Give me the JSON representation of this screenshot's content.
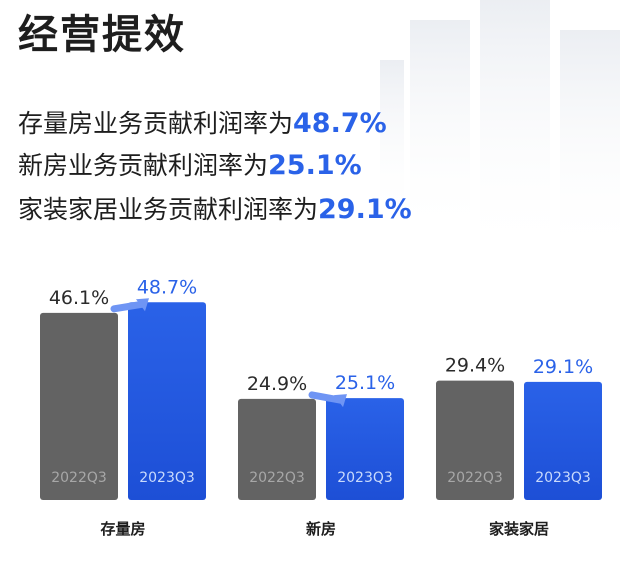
{
  "title": "经营提效",
  "metrics": [
    {
      "prefix": "存量房业务贡献利润率为",
      "value": "48.7%"
    },
    {
      "prefix": "新房业务贡献利润率为",
      "value": "25.1%"
    },
    {
      "prefix": "家装家居业务贡献利润率为",
      "value": "29.1%"
    }
  ],
  "colors": {
    "prev": "#636363",
    "curr": "#2a62e8",
    "currLabel": "#2a62e8",
    "arrow": "#6f95f4"
  },
  "chart_data": {
    "type": "bar",
    "categories": [
      "存量房",
      "新房",
      "家装家居"
    ],
    "series": [
      {
        "name": "2022Q3",
        "values": [
          46.1,
          24.9,
          29.4
        ],
        "labels": [
          "46.1%",
          "24.9%",
          "29.4%"
        ]
      },
      {
        "name": "2023Q3",
        "values": [
          48.7,
          25.1,
          29.1
        ],
        "labels": [
          "48.7%",
          "25.1%",
          "29.1%"
        ]
      }
    ],
    "xlabel": "",
    "ylabel": "",
    "ylim": [
      0,
      60
    ],
    "grid": false,
    "legend": "none"
  }
}
